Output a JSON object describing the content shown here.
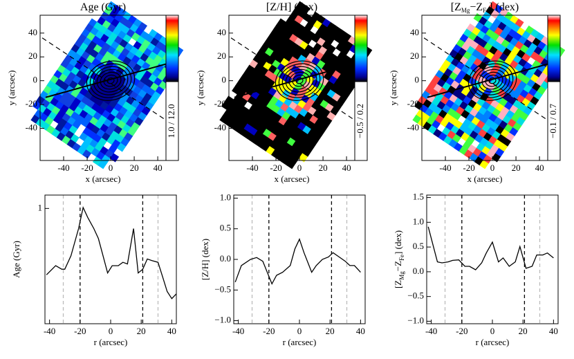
{
  "chart_data": [
    {
      "type": "map",
      "title": [
        "Age (Gyr)"
      ],
      "xlabel": "x (arcsec)",
      "ylabel": [
        "y (arcsec)"
      ],
      "xlim": [
        -60,
        47
      ],
      "ylim": [
        -67,
        55
      ],
      "xticks": [
        -40,
        -20,
        0,
        20,
        40
      ],
      "yticks": [
        40,
        20,
        0,
        -20,
        -40
      ],
      "colorbar_label": "1.0 / 12.0",
      "palette": "age"
    },
    {
      "type": "map",
      "title": [
        "[Z/H] (dex)"
      ],
      "xlabel": "x (arcsec)",
      "ylabel": [
        "y (arcsec)"
      ],
      "xlim": [
        -60,
        47
      ],
      "ylim": [
        -67,
        55
      ],
      "xticks": [
        -40,
        -20,
        0,
        20,
        40
      ],
      "yticks": [
        40,
        20,
        0,
        -20,
        -40
      ],
      "colorbar_label": "−0.5 / 0.2",
      "palette": "metal"
    },
    {
      "type": "map",
      "title": [
        "[Z",
        "Mg",
        "−Z",
        "Fe",
        "] (dex)"
      ],
      "xlabel": "x (arcsec)",
      "ylabel": [
        "y (arcsec)"
      ],
      "xlim": [
        -60,
        47
      ],
      "ylim": [
        -67,
        55
      ],
      "xticks": [
        -40,
        -20,
        0,
        20,
        40
      ],
      "yticks": [
        40,
        20,
        0,
        -20,
        -40
      ],
      "colorbar_label": "−0.1 / 0.7",
      "palette": "alpha"
    },
    {
      "type": "line",
      "xlabel": "r (arcsec)",
      "ylabel": [
        "Age (Gyr)"
      ],
      "log_y": true,
      "xlim": [
        -43,
        43
      ],
      "ylim": [
        0.3,
        1.15
      ],
      "xticks": [
        -40,
        -20,
        0,
        20,
        40
      ],
      "yticks": [
        1
      ],
      "x": [
        -42,
        -36,
        -32,
        -30,
        -26,
        -21,
        -18,
        -15,
        -11,
        -8,
        -5,
        -2,
        1,
        5,
        8,
        11,
        15,
        18,
        21,
        24,
        27,
        31,
        34,
        37,
        40,
        43
      ],
      "values": [
        0.5,
        0.55,
        0.53,
        0.53,
        0.61,
        0.81,
        1.01,
        0.91,
        0.81,
        0.73,
        0.61,
        0.51,
        0.55,
        0.55,
        0.57,
        0.56,
        0.81,
        0.51,
        0.53,
        0.59,
        0.58,
        0.57,
        0.49,
        0.42,
        0.39,
        0.41
      ],
      "color": "#000000",
      "vlines": [
        {
          "value": -31,
          "color": "#bbbbbb"
        },
        {
          "value": -20,
          "color": "#000000"
        },
        {
          "value": 21,
          "color": "#000000"
        },
        {
          "value": 31,
          "color": "#bbbbbb"
        }
      ]
    },
    {
      "type": "line",
      "xlabel": "r (arcsec)",
      "ylabel": [
        "[Z/H] (dex)"
      ],
      "log_y": false,
      "xlim": [
        -43,
        43
      ],
      "ylim": [
        -1.05,
        1.05
      ],
      "xticks": [
        -40,
        -20,
        0,
        20,
        40
      ],
      "yticks": [
        {
          "value": -1,
          "label": "−1.0"
        },
        {
          "value": -0.5,
          "label": "−0.5"
        },
        {
          "value": 0,
          "label": "0.0"
        },
        {
          "value": 0.5,
          "label": "0.5"
        },
        {
          "value": 1,
          "label": "1.0"
        }
      ],
      "x": [
        -42,
        -38,
        -32,
        -28,
        -24,
        -18,
        -15,
        -11,
        -6,
        -3,
        0,
        3,
        8,
        11,
        15,
        19,
        22,
        26,
        30,
        33,
        36,
        40
      ],
      "values": [
        -0.37,
        -0.1,
        0.0,
        0.03,
        -0.03,
        -0.4,
        -0.26,
        -0.21,
        -0.1,
        0.17,
        0.33,
        0.11,
        -0.21,
        -0.1,
        0.0,
        0.04,
        0.11,
        0.04,
        -0.03,
        -0.1,
        -0.1,
        -0.21
      ],
      "color": "#000000",
      "vlines": [
        {
          "value": -31,
          "color": "#bbbbbb"
        },
        {
          "value": -20,
          "color": "#000000"
        },
        {
          "value": 21,
          "color": "#000000"
        },
        {
          "value": 31,
          "color": "#bbbbbb"
        }
      ]
    },
    {
      "type": "line",
      "xlabel": "r (arcsec)",
      "ylabel": [
        "[Z",
        "Mg",
        "−Z",
        "Fe",
        "] (dex)"
      ],
      "log_y": false,
      "xlim": [
        -43,
        43
      ],
      "ylim": [
        -1.05,
        1.55
      ],
      "xticks": [
        -40,
        -20,
        0,
        20,
        40
      ],
      "yticks": [
        {
          "value": -1,
          "label": "−1.0"
        },
        {
          "value": -0.5,
          "label": "−0.5"
        },
        {
          "value": 0,
          "label": "0.0"
        },
        {
          "value": 0.5,
          "label": "0.5"
        },
        {
          "value": 1,
          "label": "1.0"
        },
        1.5
      ],
      "x": [
        -42,
        -36,
        -33,
        -29,
        -26,
        -22,
        -18,
        -15,
        -11,
        -7,
        -4,
        0,
        4,
        7,
        11,
        15,
        18,
        22,
        26,
        29,
        33,
        36,
        40
      ],
      "values": [
        0.91,
        0.2,
        0.18,
        0.2,
        0.23,
        0.24,
        0.11,
        0.11,
        0.04,
        0.18,
        0.38,
        0.6,
        0.2,
        0.28,
        0.11,
        0.2,
        0.51,
        0.07,
        0.11,
        0.34,
        0.34,
        0.38,
        0.28
      ],
      "color": "#000000",
      "vlines": [
        {
          "value": -31,
          "color": "#bbbbbb"
        },
        {
          "value": -20,
          "color": "#000000"
        },
        {
          "value": 21,
          "color": "#000000"
        },
        {
          "value": 31,
          "color": "#bbbbbb"
        }
      ]
    }
  ]
}
